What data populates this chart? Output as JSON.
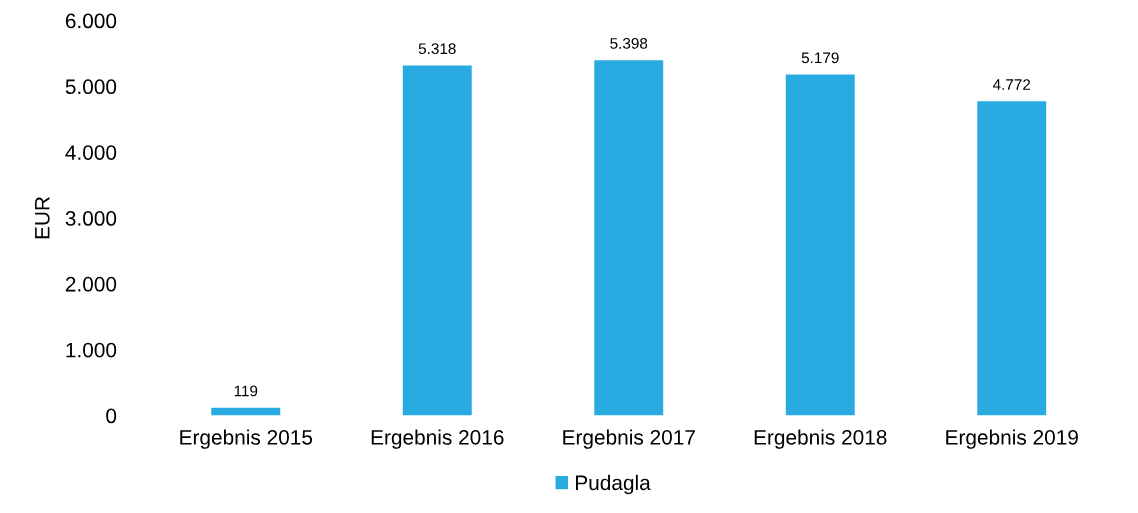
{
  "chart_data": {
    "type": "bar",
    "ylabel": "EUR",
    "categories": [
      "Ergebnis 2015",
      "Ergebnis 2016",
      "Ergebnis 2017",
      "Ergebnis 2018",
      "Ergebnis 2019"
    ],
    "series": [
      {
        "name": "Pudagla",
        "color": "#29abe2",
        "values": [
          119,
          5318,
          5398,
          5179,
          4772
        ],
        "value_labels": [
          "119",
          "5.318",
          "5.398",
          "5.179",
          "4.772"
        ]
      }
    ],
    "ylim": [
      0,
      6000
    ],
    "yticks": [
      {
        "value": 0,
        "label": "0"
      },
      {
        "value": 1000,
        "label": "1.000"
      },
      {
        "value": 2000,
        "label": "2.000"
      },
      {
        "value": 3000,
        "label": "3.000"
      },
      {
        "value": 4000,
        "label": "4.000"
      },
      {
        "value": 5000,
        "label": "5.000"
      },
      {
        "value": 6000,
        "label": "6.000"
      }
    ],
    "legend": "bottom"
  }
}
